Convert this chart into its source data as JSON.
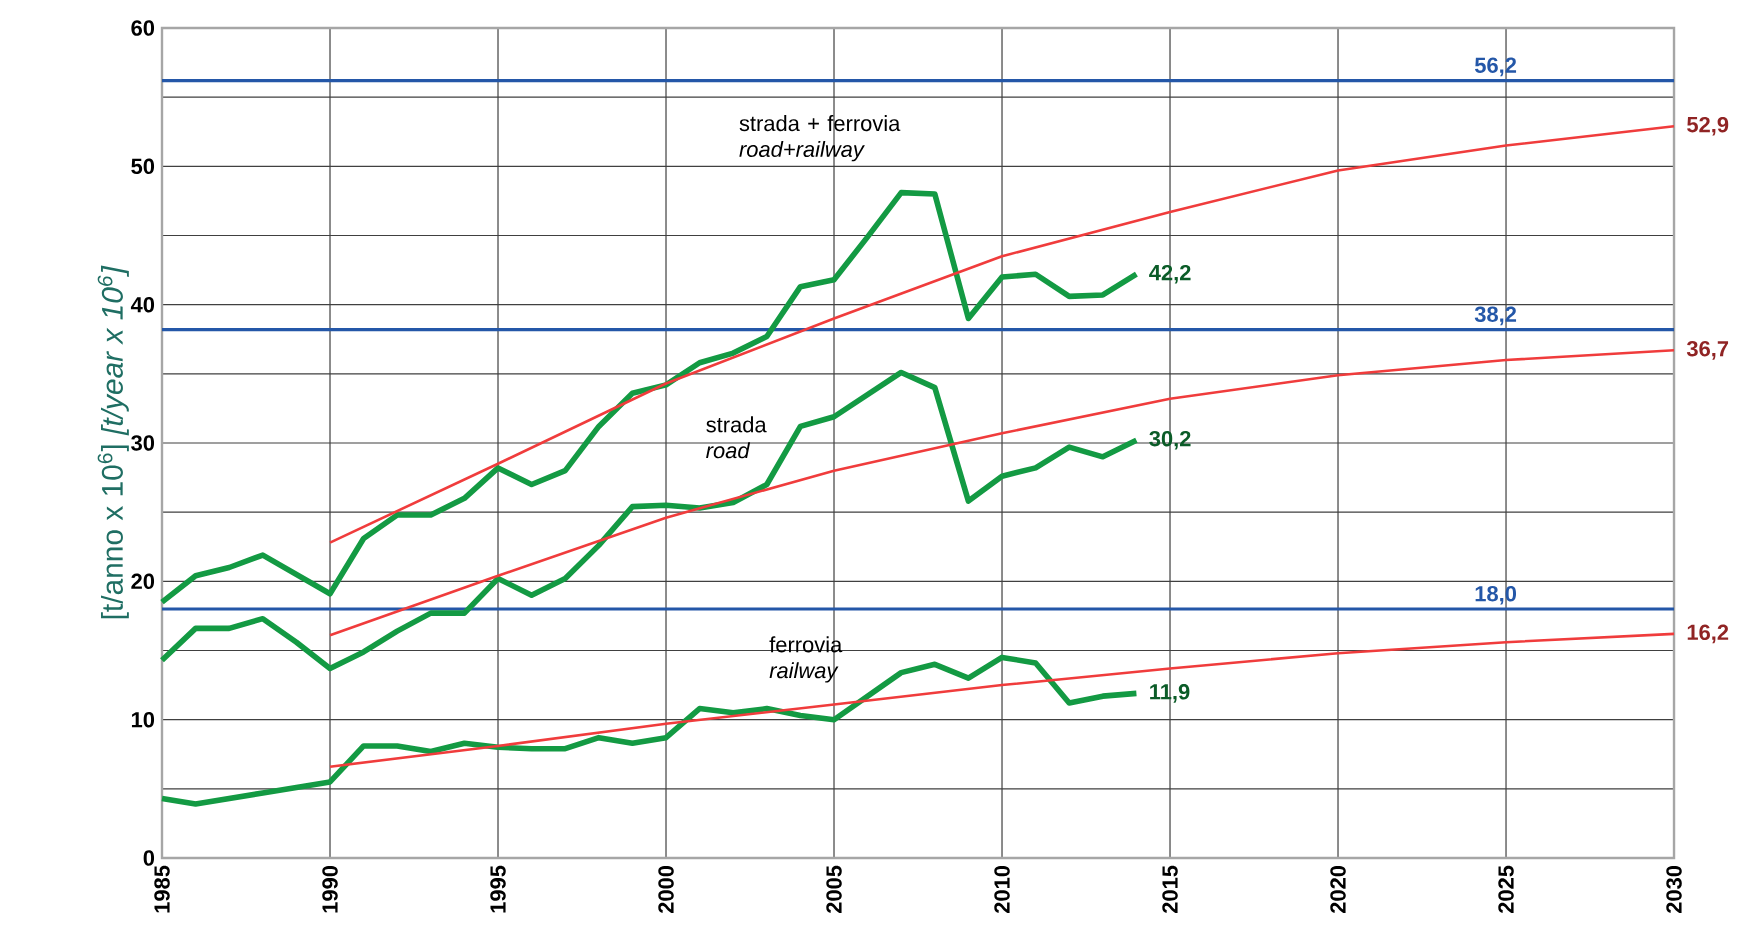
{
  "chart_data": {
    "type": "line",
    "ylabel": "[t/anno x 10$^{6}$] *[t/year x 10$^{6}$]*",
    "xlim": [
      1985,
      2030
    ],
    "xticks": [
      1985,
      1990,
      1995,
      2000,
      2005,
      2010,
      2015,
      2020,
      2025,
      2030
    ],
    "ylim": [
      0,
      60
    ],
    "yticks": [
      0,
      {
        "value": 5,
        "label": null
      },
      10,
      {
        "value": 15,
        "label": null
      },
      20,
      {
        "value": 25,
        "label": null
      },
      30,
      {
        "value": 35,
        "label": null
      },
      40,
      {
        "value": 45,
        "label": null
      },
      50,
      {
        "value": 55,
        "label": null
      },
      60
    ],
    "grid": true,
    "marker": "none",
    "line_style": "solid",
    "x": [
      1985,
      1986,
      1987,
      1988,
      1989,
      1990,
      1991,
      1992,
      1993,
      1994,
      1995,
      1996,
      1997,
      1998,
      1999,
      2000,
      2001,
      2002,
      2003,
      2004,
      2005,
      2006,
      2007,
      2008,
      2009,
      2010,
      2011,
      2012,
      2013,
      2014
    ],
    "series": [
      {
        "color": "#139a43",
        "values": [
          18.5,
          20.4,
          21.0,
          21.9,
          20.5,
          19.1,
          23.1,
          24.8,
          24.8,
          26.0,
          28.2,
          27.0,
          28.0,
          31.2,
          33.6,
          34.2,
          35.8,
          36.5,
          37.7,
          41.3,
          41.8,
          44.9,
          48.1,
          48.0,
          39.0,
          42.0,
          42.2,
          40.6,
          40.7,
          42.2
        ],
        "value_labels": [
          null,
          null,
          null,
          null,
          null,
          null,
          null,
          null,
          null,
          null,
          null,
          null,
          null,
          null,
          null,
          null,
          null,
          null,
          null,
          null,
          null,
          null,
          null,
          null,
          null,
          null,
          null,
          null,
          null,
          "42,2"
        ]
      },
      {
        "color": "#139a43",
        "values": [
          14.3,
          16.6,
          16.6,
          17.3,
          15.6,
          13.7,
          14.9,
          16.4,
          17.7,
          17.7,
          20.2,
          19.0,
          20.2,
          22.6,
          25.4,
          25.5,
          25.3,
          25.7,
          27.0,
          31.2,
          31.9,
          33.5,
          35.1,
          34.0,
          25.8,
          27.6,
          28.2,
          29.7,
          29.0,
          30.2
        ],
        "value_labels": [
          null,
          null,
          null,
          null,
          null,
          null,
          null,
          null,
          null,
          null,
          null,
          null,
          null,
          null,
          null,
          null,
          null,
          null,
          null,
          null,
          null,
          null,
          null,
          null,
          null,
          null,
          null,
          null,
          null,
          "30,2"
        ]
      },
      {
        "color": "#139a43",
        "values": [
          4.3,
          3.9,
          4.3,
          4.7,
          5.1,
          5.5,
          8.1,
          8.1,
          7.7,
          8.3,
          8.0,
          7.9,
          7.9,
          8.7,
          8.3,
          8.7,
          10.8,
          10.5,
          10.8,
          10.3,
          10.0,
          11.7,
          13.4,
          14.0,
          13.0,
          14.5,
          14.1,
          11.2,
          11.7,
          11.9
        ],
        "value_labels": [
          null,
          null,
          null,
          null,
          null,
          null,
          null,
          null,
          null,
          null,
          null,
          null,
          null,
          null,
          null,
          null,
          null,
          null,
          null,
          null,
          null,
          null,
          null,
          null,
          null,
          null,
          null,
          null,
          null,
          "11,9"
        ]
      },
      {
        "color": "#f03c3c",
        "x": [
          1990,
          1995,
          2000,
          2005,
          2010,
          2015,
          2020,
          2025,
          2030
        ],
        "values": [
          22.8,
          28.5,
          34.3,
          39.0,
          43.5,
          46.7,
          49.7,
          51.5,
          52.9
        ],
        "value_labels": [
          null,
          null,
          null,
          null,
          null,
          null,
          null,
          null,
          "52,9"
        ]
      },
      {
        "color": "#f03c3c",
        "x": [
          1990,
          1995,
          2000,
          2005,
          2010,
          2015,
          2020,
          2025,
          2030
        ],
        "values": [
          16.1,
          20.4,
          24.6,
          28.0,
          30.7,
          33.2,
          34.9,
          36.0,
          36.7
        ],
        "value_labels": [
          null,
          null,
          null,
          null,
          null,
          null,
          null,
          null,
          "36,7"
        ]
      },
      {
        "color": "#f03c3c",
        "x": [
          1990,
          1995,
          2000,
          2005,
          2010,
          2015,
          2020,
          2025,
          2030
        ],
        "values": [
          6.6,
          8.1,
          9.7,
          11.1,
          12.5,
          13.7,
          14.8,
          15.6,
          16.2
        ],
        "value_labels": [
          null,
          null,
          null,
          null,
          null,
          null,
          null,
          null,
          "16,2"
        ]
      }
    ],
    "ref_lines": [
      {
        "axis": "y",
        "value": 56.2,
        "label": "56,2",
        "color": "#2457a8"
      },
      {
        "axis": "y",
        "value": 38.2,
        "label": "38,2",
        "color": "#2457a8"
      },
      {
        "axis": "y",
        "value": 18.0,
        "label": "18,0",
        "color": "#2457a8"
      }
    ],
    "annotations": [
      "strada + ferrovia *road+railway*",
      "strada *road*",
      "ferrovia *railway*"
    ]
  }
}
